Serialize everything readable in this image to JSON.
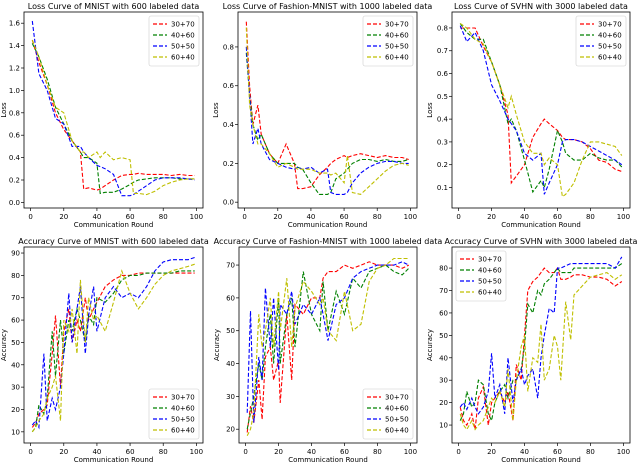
{
  "colors": {
    "30+70": "#ff0000",
    "40+60": "#008000",
    "50+50": "#0000ff",
    "60+40": "#bfbf00"
  },
  "chart_data": [
    {
      "type": "line",
      "title": "Loss Curve of MNIST with 600 labeled data",
      "xlabel": "Communication Round",
      "ylabel": "Loss",
      "xlim": [
        -4,
        104
      ],
      "ylim": [
        -0.05,
        1.7
      ],
      "xticks": [
        0,
        20,
        40,
        60,
        80,
        100
      ],
      "yticks": [
        0.0,
        0.2,
        0.4,
        0.6,
        0.8,
        1.0,
        1.2,
        1.4,
        1.6
      ],
      "yticklabels": [
        "0.0",
        "0.2",
        "0.4",
        "0.6",
        "0.8",
        "1.0",
        "1.2",
        "1.4",
        "1.6"
      ],
      "legend": "top-right",
      "x": [
        1,
        5,
        10,
        15,
        20,
        25,
        30,
        32,
        35,
        40,
        42,
        45,
        50,
        55,
        60,
        62,
        65,
        70,
        75,
        80,
        85,
        90,
        95,
        99
      ],
      "series": [
        {
          "name": "30+70",
          "values": [
            1.45,
            1.25,
            1.05,
            0.8,
            0.65,
            0.55,
            0.45,
            0.12,
            0.13,
            0.11,
            0.12,
            0.15,
            0.2,
            0.24,
            0.25,
            0.25,
            0.26,
            0.25,
            0.25,
            0.25,
            0.24,
            0.25,
            0.24,
            0.24
          ]
        },
        {
          "name": "40+60",
          "values": [
            1.42,
            1.3,
            1.1,
            0.85,
            0.7,
            0.55,
            0.45,
            0.4,
            0.4,
            0.35,
            0.08,
            0.09,
            0.09,
            0.12,
            0.16,
            0.18,
            0.2,
            0.21,
            0.22,
            0.22,
            0.22,
            0.21,
            0.21,
            0.21
          ]
        },
        {
          "name": "50+50",
          "values": [
            1.62,
            1.15,
            1.0,
            0.75,
            0.7,
            0.5,
            0.5,
            0.45,
            0.4,
            0.33,
            0.32,
            0.3,
            0.25,
            0.06,
            0.06,
            0.07,
            0.1,
            0.15,
            0.2,
            0.22,
            0.22,
            0.22,
            0.21,
            0.2
          ]
        },
        {
          "name": "60+40",
          "values": [
            1.45,
            1.3,
            1.05,
            0.85,
            0.8,
            0.55,
            0.45,
            0.45,
            0.4,
            0.45,
            0.4,
            0.45,
            0.38,
            0.4,
            0.38,
            0.08,
            0.08,
            0.07,
            0.1,
            0.15,
            0.18,
            0.2,
            0.21,
            0.21
          ]
        }
      ]
    },
    {
      "type": "line",
      "title": "Loss Curve of Fashion-MNIST with 1000 labeled data",
      "xlabel": "Communication Round",
      "ylabel": "Loss",
      "xlim": [
        -4,
        104
      ],
      "ylim": [
        -0.03,
        0.98
      ],
      "xticks": [
        0,
        20,
        40,
        60,
        80,
        100
      ],
      "yticks": [
        0.0,
        0.2,
        0.4,
        0.6,
        0.8
      ],
      "yticklabels": [
        "0.0",
        "0.2",
        "0.4",
        "0.6",
        "0.8"
      ],
      "legend": "top-right",
      "x": [
        1,
        3,
        5,
        8,
        10,
        15,
        20,
        25,
        30,
        32,
        35,
        40,
        45,
        50,
        52,
        55,
        60,
        62,
        65,
        70,
        75,
        80,
        85,
        90,
        95,
        99
      ],
      "series": [
        {
          "name": "30+70",
          "values": [
            0.93,
            0.6,
            0.4,
            0.5,
            0.35,
            0.25,
            0.2,
            0.3,
            0.2,
            0.07,
            0.07,
            0.08,
            0.14,
            0.18,
            0.2,
            0.22,
            0.24,
            0.23,
            0.24,
            0.25,
            0.24,
            0.23,
            0.24,
            0.23,
            0.23,
            0.22
          ]
        },
        {
          "name": "40+60",
          "values": [
            0.77,
            0.55,
            0.4,
            0.32,
            0.35,
            0.25,
            0.2,
            0.2,
            0.2,
            0.18,
            0.17,
            0.1,
            0.04,
            0.04,
            0.05,
            0.12,
            0.15,
            0.17,
            0.2,
            0.22,
            0.22,
            0.21,
            0.22,
            0.21,
            0.21,
            0.22
          ]
        },
        {
          "name": "50+50",
          "values": [
            0.8,
            0.55,
            0.3,
            0.38,
            0.3,
            0.22,
            0.2,
            0.18,
            0.17,
            0.18,
            0.17,
            0.18,
            0.15,
            0.17,
            0.05,
            0.04,
            0.04,
            0.05,
            0.1,
            0.15,
            0.18,
            0.2,
            0.21,
            0.21,
            0.2,
            0.2
          ]
        },
        {
          "name": "60+40",
          "values": [
            0.9,
            0.5,
            0.4,
            0.3,
            0.3,
            0.25,
            0.18,
            0.2,
            0.18,
            0.17,
            0.17,
            0.17,
            0.15,
            0.15,
            0.14,
            0.15,
            0.1,
            0.24,
            0.05,
            0.04,
            0.08,
            0.12,
            0.16,
            0.19,
            0.2,
            0.19
          ]
        }
      ]
    },
    {
      "type": "line",
      "title": "Loss Curve of SVHN with 3000 labeled data",
      "xlabel": "Communication Round",
      "ylabel": "Loss",
      "xlim": [
        -4,
        104
      ],
      "ylim": [
        0.01,
        0.87
      ],
      "xticks": [
        0,
        20,
        40,
        60,
        80,
        100
      ],
      "yticks": [
        0.1,
        0.2,
        0.3,
        0.4,
        0.5,
        0.6,
        0.7,
        0.8
      ],
      "yticklabels": [
        "0.1",
        "0.2",
        "0.3",
        "0.4",
        "0.5",
        "0.6",
        "0.7",
        "0.8"
      ],
      "legend": "top-right",
      "x": [
        1,
        5,
        10,
        15,
        20,
        25,
        30,
        32,
        35,
        40,
        45,
        50,
        52,
        55,
        60,
        63,
        65,
        70,
        75,
        80,
        85,
        90,
        95,
        99
      ],
      "series": [
        {
          "name": "30+70",
          "values": [
            0.8,
            0.8,
            0.8,
            0.72,
            0.65,
            0.55,
            0.42,
            0.12,
            0.15,
            0.2,
            0.32,
            0.38,
            0.4,
            0.38,
            0.35,
            0.32,
            0.31,
            0.31,
            0.3,
            0.27,
            0.22,
            0.21,
            0.18,
            0.17
          ]
        },
        {
          "name": "40+60",
          "values": [
            0.82,
            0.78,
            0.75,
            0.75,
            0.65,
            0.55,
            0.38,
            0.4,
            0.35,
            0.22,
            0.08,
            0.13,
            0.1,
            0.18,
            0.35,
            0.3,
            0.25,
            0.22,
            0.22,
            0.25,
            0.23,
            0.22,
            0.22,
            0.19
          ]
        },
        {
          "name": "50+50",
          "values": [
            0.81,
            0.74,
            0.78,
            0.7,
            0.55,
            0.48,
            0.4,
            0.38,
            0.35,
            0.25,
            0.22,
            0.25,
            0.07,
            0.12,
            0.2,
            0.3,
            0.31,
            0.31,
            0.3,
            0.28,
            0.26,
            0.24,
            0.22,
            0.2
          ]
        },
        {
          "name": "60+40",
          "values": [
            0.82,
            0.8,
            0.75,
            0.73,
            0.65,
            0.55,
            0.45,
            0.5,
            0.42,
            0.3,
            0.25,
            0.25,
            0.2,
            0.23,
            0.2,
            0.06,
            0.07,
            0.12,
            0.22,
            0.3,
            0.3,
            0.29,
            0.28,
            0.24
          ]
        }
      ]
    },
    {
      "type": "line",
      "title": "Accuracy Curve of MNIST with 600 labeled data",
      "xlabel": "Communication Round",
      "ylabel": "Accuracy",
      "xlim": [
        -4,
        104
      ],
      "ylim": [
        5,
        92.7
      ],
      "xticks": [
        0,
        20,
        40,
        60,
        80,
        100
      ],
      "yticks": [
        10,
        20,
        30,
        40,
        50,
        60,
        70,
        80,
        90
      ],
      "yticklabels": [
        "10",
        "20",
        "30",
        "40",
        "50",
        "60",
        "70",
        "80",
        "90"
      ],
      "legend": "lower-right",
      "x": [
        1,
        3,
        5,
        8,
        10,
        13,
        15,
        18,
        20,
        23,
        25,
        28,
        30,
        33,
        35,
        38,
        40,
        45,
        50,
        55,
        60,
        65,
        70,
        75,
        80,
        85,
        90,
        95,
        99
      ],
      "series": [
        {
          "name": "30+70",
          "values": [
            12,
            14,
            18,
            20,
            22,
            45,
            62,
            30,
            55,
            65,
            50,
            60,
            55,
            70,
            60,
            65,
            68,
            75,
            78,
            80,
            80,
            81,
            81,
            81,
            81,
            81,
            81,
            81,
            81
          ]
        },
        {
          "name": "40+60",
          "values": [
            10,
            12,
            22,
            18,
            25,
            55,
            35,
            60,
            45,
            60,
            55,
            65,
            60,
            50,
            62,
            58,
            70,
            68,
            72,
            78,
            80,
            80,
            81,
            81,
            81,
            81,
            82,
            82,
            82
          ]
        },
        {
          "name": "50+50",
          "values": [
            13,
            15,
            12,
            45,
            15,
            25,
            20,
            30,
            45,
            72,
            50,
            65,
            75,
            45,
            62,
            75,
            55,
            70,
            75,
            70,
            72,
            70,
            75,
            82,
            86,
            87,
            87,
            87,
            88
          ]
        },
        {
          "name": "60+40",
          "values": [
            10,
            12,
            15,
            18,
            25,
            30,
            35,
            15,
            60,
            55,
            65,
            45,
            78,
            50,
            70,
            60,
            62,
            55,
            68,
            82,
            72,
            65,
            70,
            76,
            80,
            82,
            83,
            84,
            85
          ]
        }
      ]
    },
    {
      "type": "line",
      "title": "Accuracy Curve of Fashion-MNIST with 1000 labeled data",
      "xlabel": "Communication Round",
      "ylabel": "Accuracy",
      "xlim": [
        -4,
        104
      ],
      "ylim": [
        15.8,
        75.5
      ],
      "xticks": [
        0,
        20,
        40,
        60,
        80,
        100
      ],
      "yticks": [
        20,
        30,
        40,
        50,
        60,
        70
      ],
      "yticklabels": [
        "20",
        "30",
        "40",
        "50",
        "60",
        "70"
      ],
      "legend": "lower-right",
      "x": [
        1,
        3,
        5,
        8,
        10,
        12,
        15,
        17,
        20,
        21,
        25,
        28,
        30,
        35,
        40,
        45,
        47,
        50,
        55,
        60,
        65,
        70,
        75,
        80,
        85,
        90,
        95,
        99
      ],
      "series": [
        {
          "name": "30+70",
          "values": [
            19,
            27,
            22,
            35,
            23,
            42,
            45,
            35,
            41,
            28,
            55,
            35,
            58,
            55,
            60,
            60,
            66,
            68,
            68,
            70,
            69,
            70,
            71,
            70,
            70,
            70,
            69,
            70
          ]
        },
        {
          "name": "40+60",
          "values": [
            20,
            25,
            30,
            40,
            35,
            45,
            55,
            40,
            60,
            40,
            55,
            60,
            45,
            68,
            55,
            50,
            65,
            50,
            62,
            55,
            66,
            63,
            68,
            69,
            70,
            68,
            67,
            69
          ]
        },
        {
          "name": "50+50",
          "values": [
            25,
            56,
            22,
            42,
            35,
            63,
            45,
            60,
            38,
            58,
            55,
            62,
            52,
            58,
            55,
            60,
            55,
            47,
            58,
            60,
            66,
            68,
            69,
            70,
            70,
            70,
            71,
            70
          ]
        },
        {
          "name": "60+40",
          "values": [
            18,
            20,
            25,
            55,
            45,
            50,
            60,
            45,
            62,
            50,
            66,
            45,
            57,
            65,
            62,
            58,
            60,
            50,
            47,
            62,
            50,
            52,
            65,
            69,
            70,
            72,
            72,
            72
          ]
        }
      ]
    },
    {
      "type": "line",
      "title": "Accuracy Curve of SVHN with 3000 labeled data",
      "xlabel": "Communication Round",
      "ylabel": "Accuracy",
      "xlim": [
        -4,
        104
      ],
      "ylim": [
        2,
        89.4
      ],
      "xticks": [
        0,
        20,
        40,
        60,
        80,
        100
      ],
      "yticks": [
        10,
        20,
        30,
        40,
        50,
        60,
        70,
        80
      ],
      "yticklabels": [
        "10",
        "20",
        "30",
        "40",
        "50",
        "60",
        "70",
        "80"
      ],
      "legend": "upper-left",
      "x": [
        1,
        3,
        5,
        8,
        10,
        12,
        15,
        18,
        20,
        22,
        25,
        28,
        30,
        33,
        35,
        38,
        40,
        42,
        45,
        48,
        50,
        52,
        55,
        58,
        60,
        62,
        65,
        68,
        70,
        75,
        80,
        85,
        90,
        95,
        99
      ],
      "series": [
        {
          "name": "30+70",
          "values": [
            18,
            12,
            10,
            15,
            8,
            22,
            27,
            10,
            20,
            22,
            25,
            20,
            25,
            12,
            37,
            30,
            50,
            70,
            74,
            76,
            78,
            80,
            78,
            78,
            80,
            75,
            75,
            76,
            77,
            77,
            76,
            76,
            75,
            72,
            74
          ]
        },
        {
          "name": "40+60",
          "values": [
            12,
            15,
            25,
            18,
            20,
            30,
            28,
            15,
            12,
            20,
            25,
            28,
            22,
            30,
            30,
            35,
            45,
            64,
            60,
            70,
            68,
            73,
            75,
            78,
            80,
            78,
            78,
            78,
            80,
            80,
            80,
            80,
            80,
            80,
            82
          ]
        },
        {
          "name": "50+50",
          "values": [
            18,
            20,
            17,
            22,
            18,
            15,
            18,
            25,
            42,
            22,
            28,
            15,
            40,
            20,
            30,
            35,
            28,
            32,
            35,
            22,
            40,
            50,
            62,
            60,
            80,
            80,
            81,
            82,
            82,
            82,
            82,
            82,
            82,
            80,
            85
          ]
        },
        {
          "name": "60+40",
          "values": [
            15,
            10,
            8,
            12,
            8,
            10,
            12,
            18,
            22,
            20,
            25,
            18,
            35,
            12,
            30,
            45,
            50,
            25,
            40,
            38,
            55,
            30,
            35,
            50,
            45,
            30,
            65,
            48,
            68,
            72,
            76,
            77,
            78,
            75,
            77
          ]
        }
      ]
    }
  ]
}
